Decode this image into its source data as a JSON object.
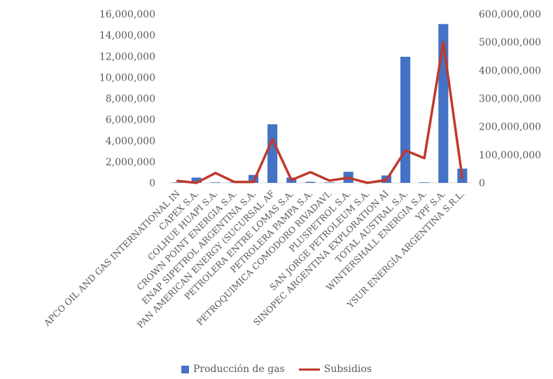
{
  "chart_data": {
    "type": "bar",
    "categories": [
      "APCO OIL AND GAS INTERNATIONAL IN",
      "CAPEX S.A.",
      "COLHUE HUAPI S.A.",
      "CROWN POINT ENERGIA S.A.",
      "ENAP SIPETROL ARGENTINA S.A.",
      "PAN AMERICAN ENERGY (SUCURSAL AF",
      "PETROLERA ENTRE LOMAS S.A.",
      "PETROLERA PAMPA S.A.",
      "PETROQUIMICA COMODORO RIVADAVI.",
      "PLUSPETROL S.A.",
      "SAN JORGE PETROLEUM S.A.",
      "SINOPEC ARGENTINA EXPLORATION AI",
      "TOTAL AUSTRAL S.A.",
      "WINTERSHALL ENERGIA S.A.",
      "YPF S.A.",
      "YSUR ENERGÍA ARGENTINA S.R.L."
    ],
    "series": [
      {
        "name": "Producción de gas",
        "type": "bar",
        "axis": "left",
        "color": "#4472C4",
        "values": [
          50000,
          500000,
          50000,
          50000,
          750000,
          5550000,
          500000,
          100000,
          50000,
          1050000,
          50000,
          700000,
          11950000,
          50000,
          15050000,
          1350000
        ]
      },
      {
        "name": "Subsidios",
        "type": "line",
        "axis": "right",
        "color": "#C0392B",
        "values": [
          7000000,
          0,
          35000000,
          3000000,
          3000000,
          155000000,
          10000000,
          38000000,
          8000000,
          18000000,
          0,
          10000000,
          115000000,
          88000000,
          500000000,
          18000000
        ]
      }
    ],
    "y_left": {
      "ylim": [
        0,
        16000000
      ],
      "ticks": [
        "0",
        "2,000,000",
        "4,000,000",
        "6,000,000",
        "8,000,000",
        "10,000,000",
        "12,000,000",
        "14,000,000",
        "16,000,000"
      ],
      "tick_values": [
        0,
        2000000,
        4000000,
        6000000,
        8000000,
        10000000,
        12000000,
        14000000,
        16000000
      ]
    },
    "y_right": {
      "ylim": [
        0,
        600000000
      ],
      "ticks": [
        "0",
        "100,000,000",
        "200,000,000",
        "300,000,000",
        "400,000,000",
        "500,000,000",
        "600,000,000"
      ],
      "tick_values": [
        0,
        100000000,
        200000000,
        300000000,
        400000000,
        500000000,
        600000000
      ]
    },
    "grid": false,
    "legend_position": "bottom"
  }
}
